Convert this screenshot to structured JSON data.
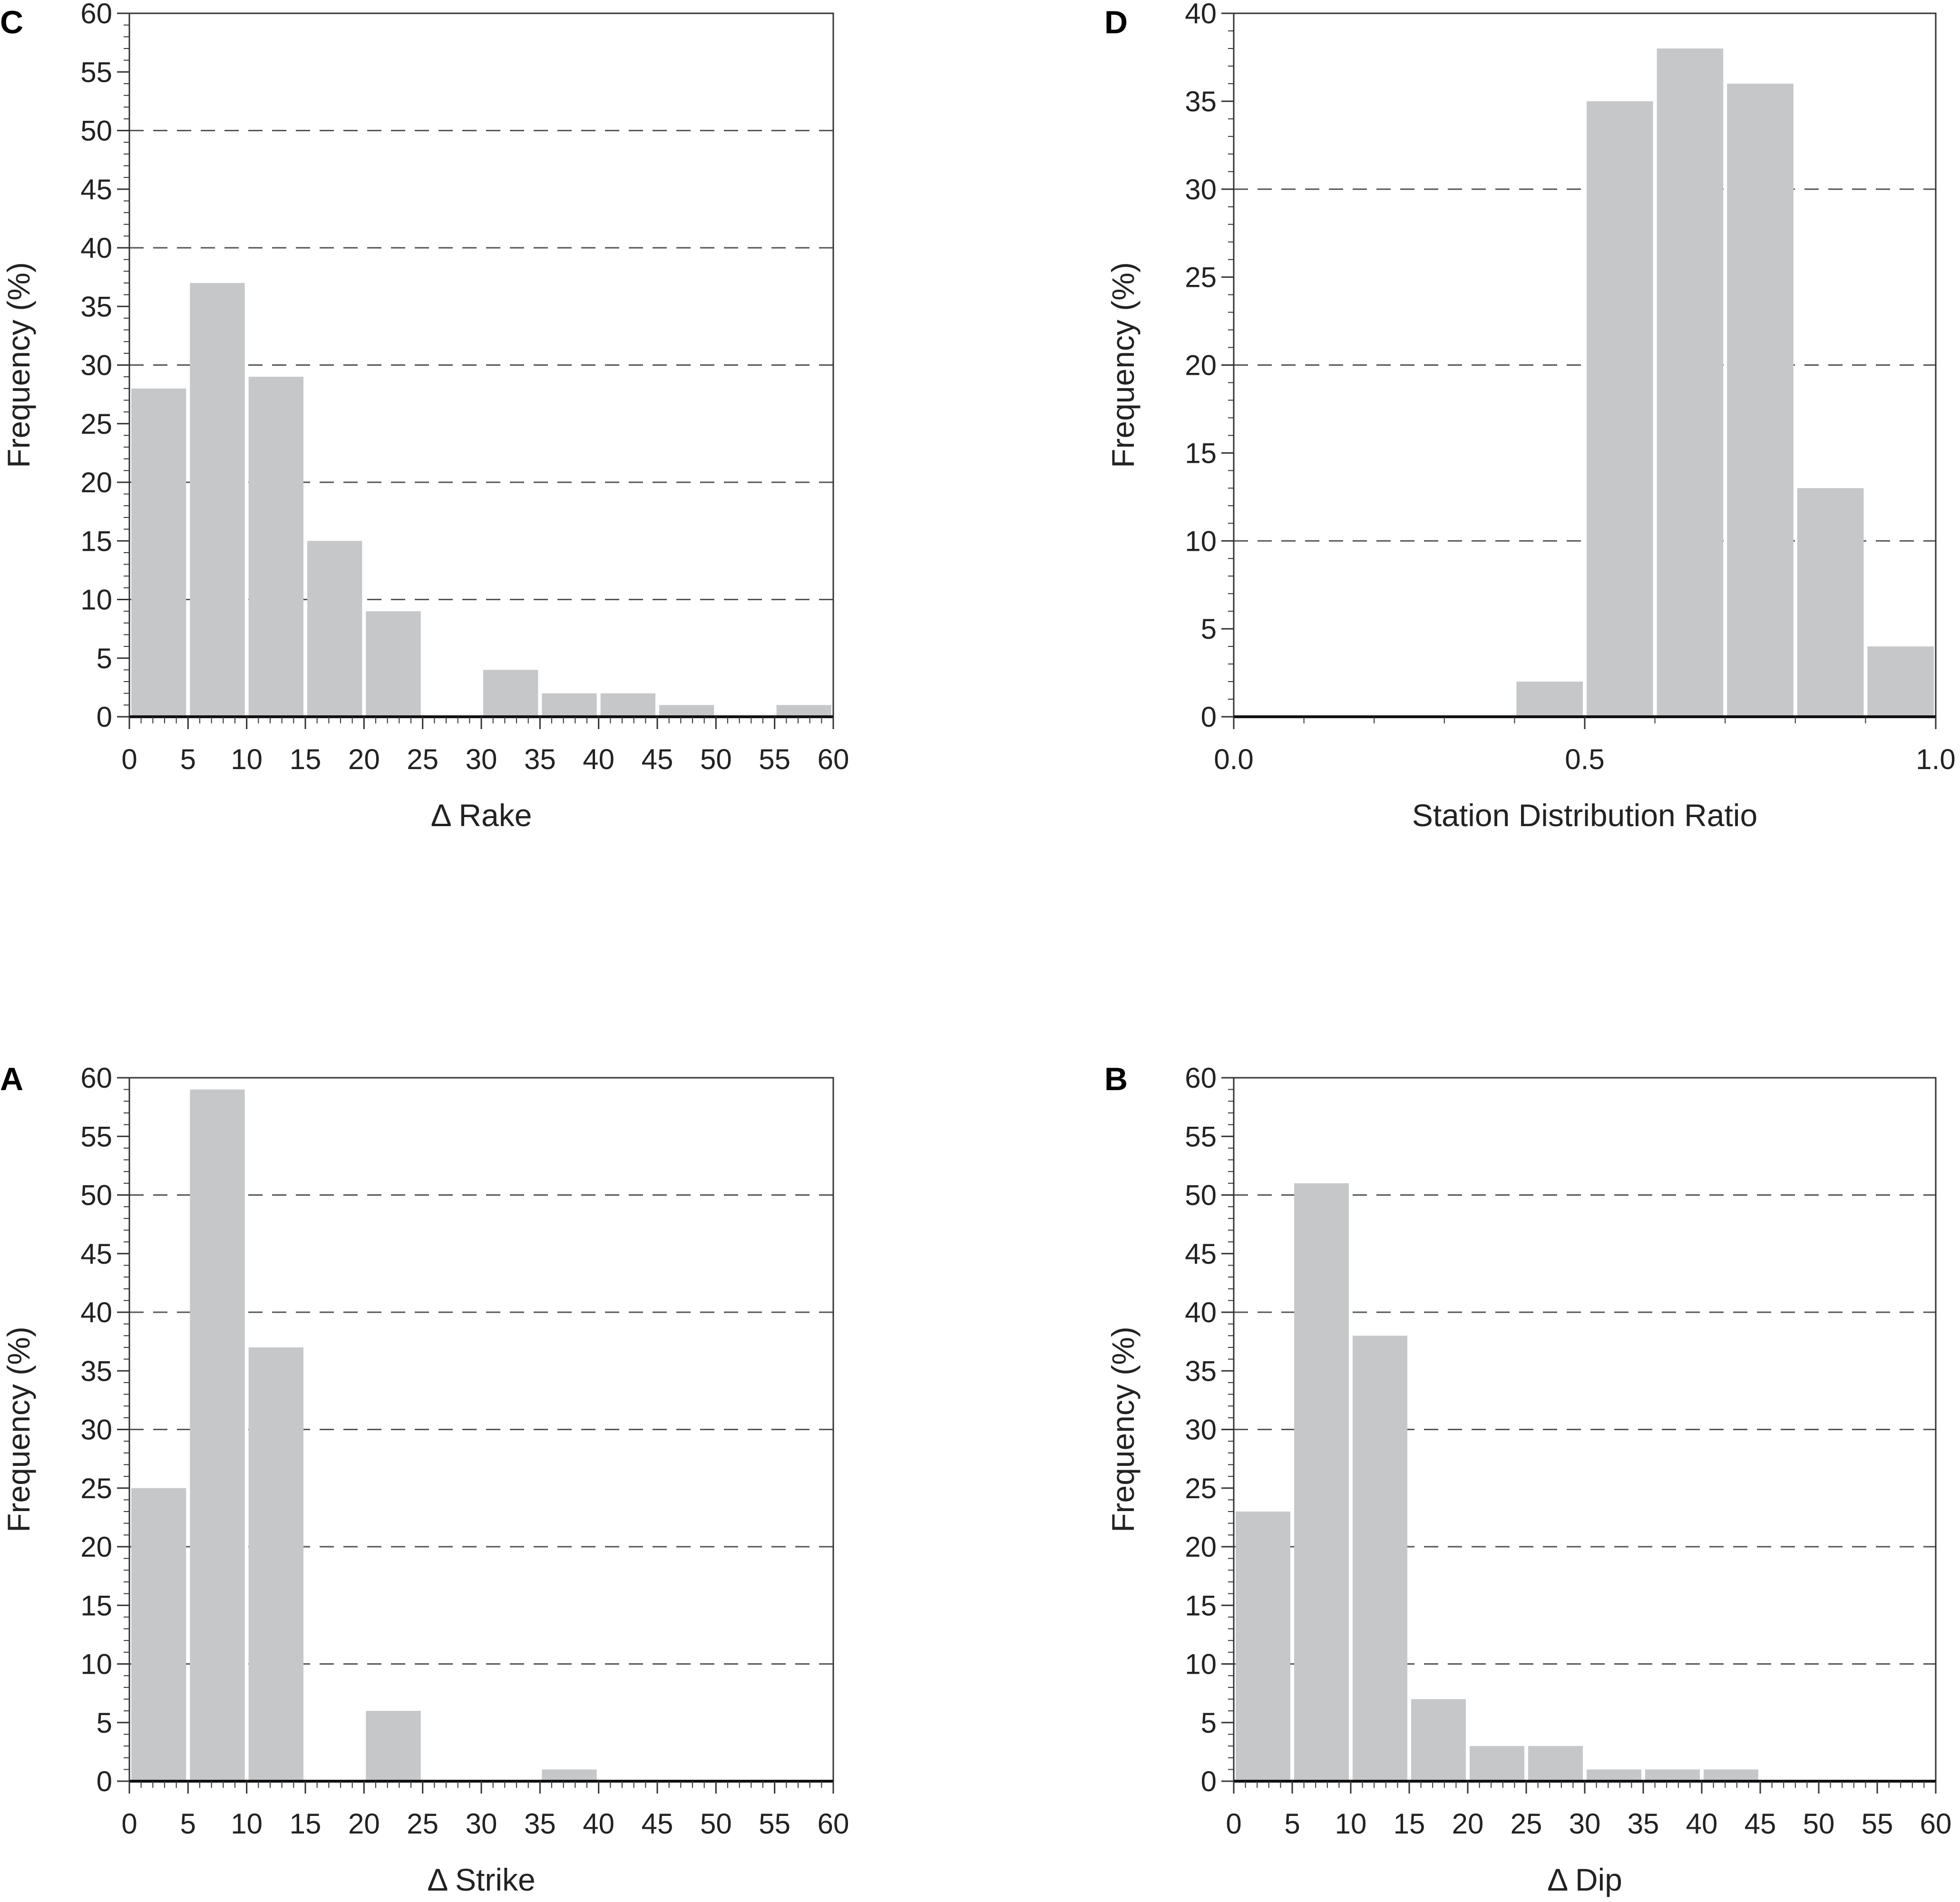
{
  "chart_data": [
    {
      "panel": "C",
      "type": "bar",
      "xlabel": "Δ Rake",
      "ylabel": "Frequency (%)",
      "xlim": [
        0,
        60
      ],
      "ylim": [
        0,
        60
      ],
      "xticks": [
        0,
        5,
        10,
        15,
        20,
        25,
        30,
        35,
        40,
        45,
        50,
        55,
        60
      ],
      "yticks": [
        0,
        5,
        10,
        15,
        20,
        25,
        30,
        35,
        40,
        45,
        50,
        55,
        60
      ],
      "grid_y": [
        10,
        20,
        30,
        40,
        50
      ],
      "bin_width": 5,
      "bins": [
        0,
        5,
        10,
        15,
        20,
        25,
        30,
        35,
        40,
        45,
        50,
        55
      ],
      "values": [
        28,
        37,
        29,
        15,
        9,
        0,
        4,
        2,
        2,
        1,
        0,
        1
      ]
    },
    {
      "panel": "D",
      "type": "bar",
      "xlabel": "Station Distribution Ratio",
      "ylabel": "Frequency (%)",
      "xlim": [
        0.0,
        1.0
      ],
      "ylim": [
        0,
        40
      ],
      "xticks": [
        "0.0",
        "0.5",
        "1.0"
      ],
      "yticks": [
        0,
        5,
        10,
        15,
        20,
        25,
        30,
        35,
        40
      ],
      "grid_y": [
        10,
        20,
        30
      ],
      "bin_width": 0.1,
      "bins": [
        0.4,
        0.5,
        0.6,
        0.7,
        0.8,
        0.9
      ],
      "values": [
        2,
        35,
        38,
        36,
        13,
        4
      ]
    },
    {
      "panel": "A",
      "type": "bar",
      "xlabel": "Δ Strike",
      "ylabel": "Frequency (%)",
      "xlim": [
        0,
        60
      ],
      "ylim": [
        0,
        60
      ],
      "xticks": [
        0,
        5,
        10,
        15,
        20,
        25,
        30,
        35,
        40,
        45,
        50,
        55,
        60
      ],
      "yticks": [
        0,
        5,
        10,
        15,
        20,
        25,
        30,
        35,
        40,
        45,
        50,
        55,
        60
      ],
      "grid_y": [
        10,
        20,
        30,
        40,
        50
      ],
      "bin_width": 5,
      "bins": [
        0,
        5,
        10,
        15,
        20,
        25,
        30,
        35,
        40,
        45,
        50,
        55
      ],
      "values": [
        25,
        59,
        37,
        0,
        6,
        0,
        0,
        1,
        0,
        0,
        0,
        0
      ]
    },
    {
      "panel": "B",
      "type": "bar",
      "xlabel": "Δ Dip",
      "ylabel": "Frequency (%)",
      "xlim": [
        0,
        60
      ],
      "ylim": [
        0,
        60
      ],
      "xticks": [
        0,
        5,
        10,
        15,
        20,
        25,
        30,
        35,
        40,
        45,
        50,
        55,
        60
      ],
      "yticks": [
        0,
        5,
        10,
        15,
        20,
        25,
        30,
        35,
        40,
        45,
        50,
        55,
        60
      ],
      "grid_y": [
        10,
        20,
        30,
        40,
        50
      ],
      "bin_width": 5,
      "bins": [
        0,
        5,
        10,
        15,
        20,
        25,
        30,
        35,
        40,
        45,
        50,
        55
      ],
      "values": [
        23,
        51,
        38,
        7,
        3,
        3,
        1,
        1,
        1,
        0,
        0,
        0
      ]
    }
  ],
  "colors": {
    "bar_fill": "#c6c7c9",
    "axis": "#333333",
    "grid": "#555555",
    "text": "#222222"
  }
}
